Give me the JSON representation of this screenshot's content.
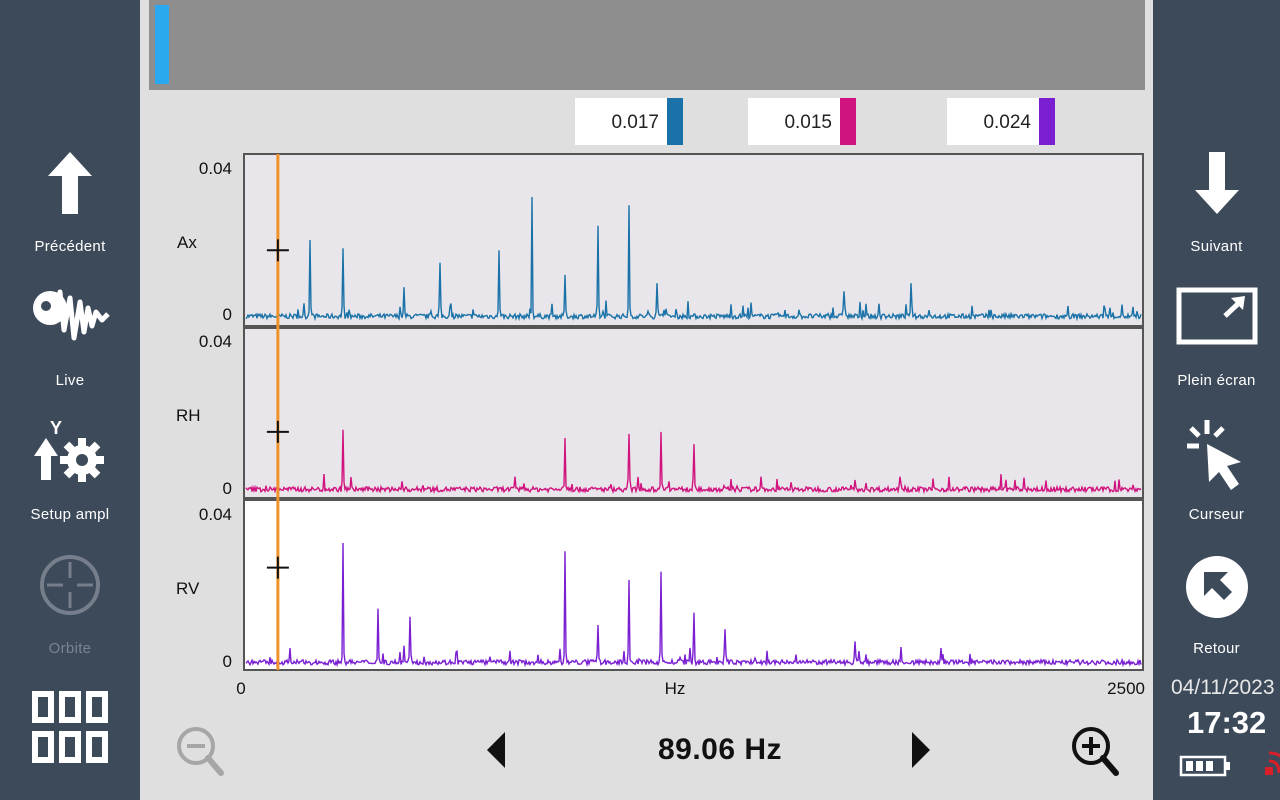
{
  "left_sidebar": {
    "previous_label": "Précédent",
    "live_label": "Live",
    "setup_ampl_label": "Setup ampl",
    "setup_ampl_axis_letter": "Y",
    "orbit_label": "Orbite",
    "menu_icon": "grid-menu-icon"
  },
  "right_sidebar": {
    "next_label": "Suivant",
    "fullscreen_label": "Plein écran",
    "cursor_label": "Curseur",
    "back_label": "Retour",
    "date": "04/11/2023",
    "time": "17:32",
    "icons": [
      "arrow-down-icon",
      "fullscreen-icon",
      "cursor-pointer-icon",
      "back-icon",
      "battery-icon",
      "wireless-icon"
    ]
  },
  "cursor_values": [
    {
      "value": "0.017",
      "color": "#1a72a8"
    },
    {
      "value": "0.015",
      "color": "#d0137e"
    },
    {
      "value": "0.024",
      "color": "#7a1fd2"
    }
  ],
  "plot": {
    "x_min_label": "0",
    "x_unit_label": "Hz",
    "x_max_label": "2500",
    "cursor_color": "#f0922a",
    "channels": [
      {
        "name": "Ax",
        "y_max_label": "0.04",
        "y_min_label": "0",
        "color": "#1a72a8"
      },
      {
        "name": "RH",
        "y_max_label": "0.04",
        "y_min_label": "0",
        "color": "#d0137e"
      },
      {
        "name": "RV",
        "y_max_label": "0.04",
        "y_min_label": "0",
        "color": "#7a1fd2"
      }
    ]
  },
  "bottom_bar": {
    "frequency": "89.06 Hz",
    "icons": [
      "zoom-out-icon",
      "prev-arrow-icon",
      "next-arrow-icon",
      "zoom-in-icon"
    ]
  },
  "chart_data": {
    "type": "line",
    "xlabel": "Hz",
    "xlim": [
      0,
      2500
    ],
    "cursor_hz": 89.06,
    "series": [
      {
        "name": "Ax",
        "ylim": [
          0,
          0.04
        ],
        "cursor_value": 0.017,
        "peaks": [
          [
            178,
            0.0195
          ],
          [
            272,
            0.0175
          ],
          [
            440,
            0.008
          ],
          [
            542,
            0.014
          ],
          [
            706,
            0.017
          ],
          [
            800,
            0.03
          ],
          [
            890,
            0.011
          ],
          [
            984,
            0.023
          ],
          [
            1070,
            0.028
          ],
          [
            1148,
            0.009
          ],
          [
            1670,
            0.007
          ],
          [
            1858,
            0.009
          ]
        ]
      },
      {
        "name": "RH",
        "ylim": [
          0,
          0.04
        ],
        "cursor_value": 0.015,
        "peaks": [
          [
            272,
            0.0155
          ],
          [
            890,
            0.0135
          ],
          [
            1070,
            0.0145
          ],
          [
            1160,
            0.015
          ],
          [
            1252,
            0.012
          ],
          [
            1828,
            0.004
          ]
        ]
      },
      {
        "name": "RV",
        "ylim": [
          0,
          0.04
        ],
        "cursor_value": 0.024,
        "peaks": [
          [
            272,
            0.03
          ],
          [
            368,
            0.014
          ],
          [
            458,
            0.012
          ],
          [
            890,
            0.028
          ],
          [
            982,
            0.01
          ],
          [
            1070,
            0.021
          ],
          [
            1160,
            0.023
          ],
          [
            1252,
            0.013
          ],
          [
            1338,
            0.009
          ],
          [
            1700,
            0.006
          ]
        ]
      }
    ]
  }
}
